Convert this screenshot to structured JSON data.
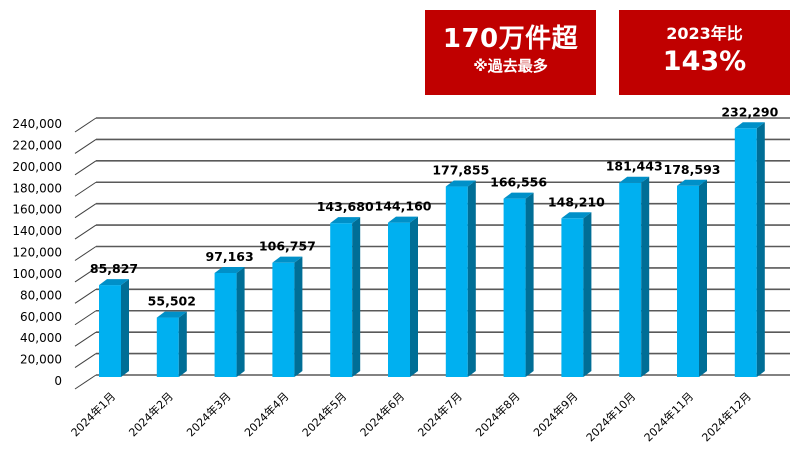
{
  "badges": {
    "total": {
      "main": "170万件超",
      "sub": "※過去最多",
      "color": "#c00000"
    },
    "yoy": {
      "top": "2023年比",
      "main": "143%",
      "color": "#c00000"
    }
  },
  "chart_data": {
    "type": "bar",
    "style": "3d-column",
    "title": "",
    "xlabel": "",
    "ylabel": "",
    "categories": [
      "2024年1月",
      "2024年2月",
      "2024年3月",
      "2024年4月",
      "2024年5月",
      "2024年6月",
      "2024年7月",
      "2024年8月",
      "2024年9月",
      "2024年10月",
      "2024年11月",
      "2024年12月"
    ],
    "values": [
      85827,
      55502,
      97163,
      106757,
      143680,
      144160,
      177855,
      166556,
      148210,
      181443,
      178593,
      232290
    ],
    "value_labels": [
      "85,827",
      "55,502",
      "97,163",
      "106,757",
      "143,680",
      "144,160",
      "177,855",
      "166,556",
      "148,210",
      "181,443",
      "178,593",
      "232,290"
    ],
    "ylim": [
      0,
      240000
    ],
    "yticks": [
      0,
      20000,
      40000,
      60000,
      80000,
      100000,
      120000,
      140000,
      160000,
      180000,
      200000,
      220000,
      240000
    ],
    "ytick_labels": [
      "0",
      "20,000",
      "40,000",
      "60,000",
      "80,000",
      "100,000",
      "120,000",
      "140,000",
      "160,000",
      "180,000",
      "200,000",
      "220,000",
      "240,000"
    ],
    "grid": true,
    "legend": null,
    "colors": {
      "bar_front": "#00b0f0",
      "bar_side": "#006e96",
      "bar_top": "#0090c8",
      "grid": "#595959"
    }
  }
}
